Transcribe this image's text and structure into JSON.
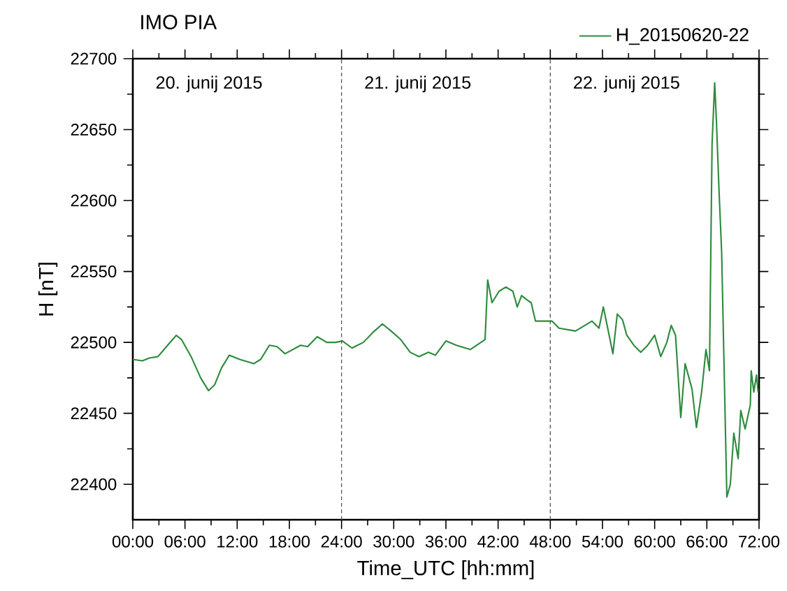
{
  "chart_data": {
    "type": "line",
    "title": "IMO PIA",
    "xlabel": "Time_UTC [hh:mm]",
    "ylabel": "H [nT]",
    "xlim": [
      0,
      72
    ],
    "ylim": [
      22375,
      22700
    ],
    "xticks": [
      {
        "value": 0,
        "label": "00:00"
      },
      {
        "value": 6,
        "label": "06:00"
      },
      {
        "value": 12,
        "label": "12:00"
      },
      {
        "value": 18,
        "label": "18:00"
      },
      {
        "value": 24,
        "label": "24:00"
      },
      {
        "value": 30,
        "label": "30:00"
      },
      {
        "value": 36,
        "label": "36:00"
      },
      {
        "value": 42,
        "label": "42:00"
      },
      {
        "value": 48,
        "label": "48:00"
      },
      {
        "value": 54,
        "label": "54:00"
      },
      {
        "value": 60,
        "label": "60:00"
      },
      {
        "value": 66,
        "label": "66:00"
      },
      {
        "value": 72,
        "label": "72:00"
      }
    ],
    "yticks": [
      22400,
      22450,
      22500,
      22550,
      22600,
      22650,
      22700
    ],
    "legend": "top right",
    "annotations": [
      "20. junij 2015",
      "21. junij 2015",
      "22. junij 2015"
    ],
    "ref_lines": [
      {
        "axis": "x",
        "value": 24,
        "color": "#555555",
        "line_style": "dashed"
      },
      {
        "axis": "x",
        "value": 48,
        "color": "#555555",
        "line_style": "dashed"
      }
    ],
    "series": [
      {
        "name": "H_20150620-22",
        "color": "#2e8b3e",
        "x": [
          0,
          1.1,
          1.9,
          2.9,
          4.0,
          5.0,
          5.6,
          6.7,
          7.8,
          8.7,
          9.4,
          10.2,
          11.1,
          12.3,
          13.9,
          14.7,
          15.7,
          16.6,
          17.5,
          19.3,
          20.1,
          21.2,
          22.3,
          23.3,
          24.1,
          25.2,
          26.5,
          27.6,
          28.7,
          29.7,
          30.8,
          31.9,
          32.9,
          34.0,
          34.8,
          36.0,
          37.2,
          38.8,
          40.5,
          40.8,
          41.3,
          42.1,
          42.9,
          43.7,
          44.2,
          44.7,
          45.3,
          45.8,
          46.3,
          47.1,
          48.2,
          49.0,
          50.9,
          52.8,
          53.6,
          54.1,
          54.6,
          55.2,
          55.7,
          56.3,
          56.8,
          57.6,
          58.4,
          59.2,
          60.0,
          60.7,
          61.4,
          61.9,
          62.4,
          63.0,
          63.5,
          64.3,
          64.8,
          65.4,
          65.9,
          66.3,
          66.6,
          66.9,
          67.1,
          67.4,
          67.7,
          68.3,
          68.7,
          69.1,
          69.6,
          69.9,
          70.4,
          71.0,
          71.1,
          71.4,
          71.7,
          71.9
        ],
        "values": [
          22488,
          22487,
          22489,
          22490,
          22498,
          22505,
          22502,
          22490,
          22475,
          22466,
          22470,
          22482,
          22491,
          22488,
          22485,
          22488,
          22498,
          22497,
          22492,
          22498,
          22497,
          22504,
          22500,
          22500,
          22501,
          22496,
          22500,
          22507,
          22513,
          22508,
          22502,
          22493,
          22490,
          22493,
          22491,
          22501,
          22498,
          22495,
          22502,
          22544,
          22528,
          22536,
          22539,
          22536,
          22525,
          22533,
          22530,
          22528,
          22515,
          22515,
          22515,
          22510,
          22508,
          22515,
          22510,
          22525,
          22510,
          22492,
          22520,
          22516,
          22505,
          22498,
          22493,
          22498,
          22505,
          22490,
          22500,
          22512,
          22505,
          22447,
          22485,
          22467,
          22440,
          22465,
          22495,
          22480,
          22640,
          22683,
          22656,
          22607,
          22564,
          22391,
          22400,
          22436,
          22418,
          22452,
          22439,
          22456,
          22480,
          22465,
          22477,
          22465
        ]
      }
    ]
  }
}
